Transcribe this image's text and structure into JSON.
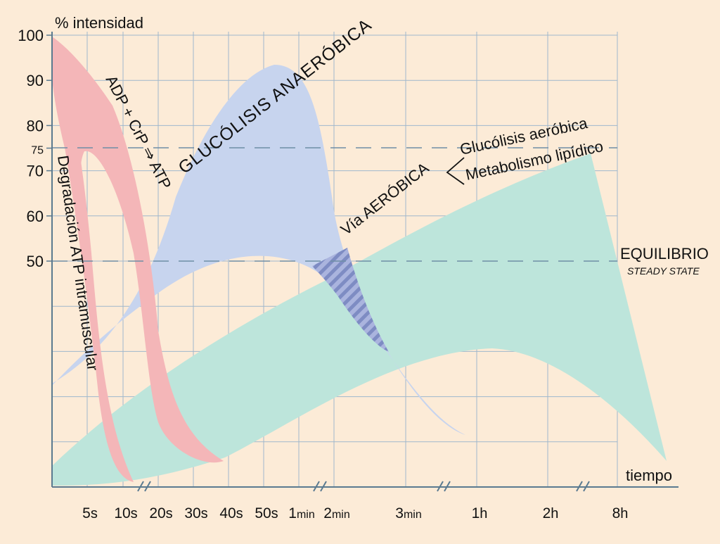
{
  "chart_data": {
    "type": "area",
    "ylabel": "% intensidad",
    "xlabel": "tiempo",
    "y_ticks": [
      100,
      90,
      80,
      75,
      70,
      60,
      50
    ],
    "ylim": [
      0,
      100
    ],
    "x_ticks": [
      {
        "num": "5",
        "unit": "s"
      },
      {
        "num": "10",
        "unit": "s"
      },
      {
        "num": "20",
        "unit": "s"
      },
      {
        "num": "30",
        "unit": "s"
      },
      {
        "num": "40",
        "unit": "s"
      },
      {
        "num": "50",
        "unit": "s"
      },
      {
        "num": "1",
        "unit": "min"
      },
      {
        "num": "2",
        "unit": "min"
      },
      {
        "num": "3",
        "unit": "min"
      },
      {
        "num": "1",
        "unit": "h"
      },
      {
        "num": "2",
        "unit": "h"
      },
      {
        "num": "8",
        "unit": "h"
      }
    ],
    "reference_lines": [
      75,
      50
    ],
    "grid": true,
    "series": [
      {
        "name": "Degradación ATP intramuscular",
        "color": "#f4b6b8",
        "peak": 100
      },
      {
        "name": "ADP + CrP ⇒ ATP",
        "color": "#f4b6b8",
        "peak": 100
      },
      {
        "name": "GLUCÓLISIS ANAERÓBICA",
        "color": "#c7d4ee",
        "peak": 94
      },
      {
        "name": "Vía AERÓBICA",
        "color": "#bde5db",
        "peak": 73
      }
    ],
    "annotations": {
      "aerobic_branch_1": "Glucólisis aeróbica",
      "aerobic_branch_2": "Metabolismo lipídico",
      "equilibrium": "EQUILIBRIO",
      "steady_state": "STEADY STATE"
    },
    "colors": {
      "background": "#fcebd7",
      "grid": "#9fb7cc",
      "pink": "#f4b6b8",
      "blue": "#c7d4ee",
      "green": "#bde5db",
      "hatch": "#7e8cc3"
    }
  }
}
